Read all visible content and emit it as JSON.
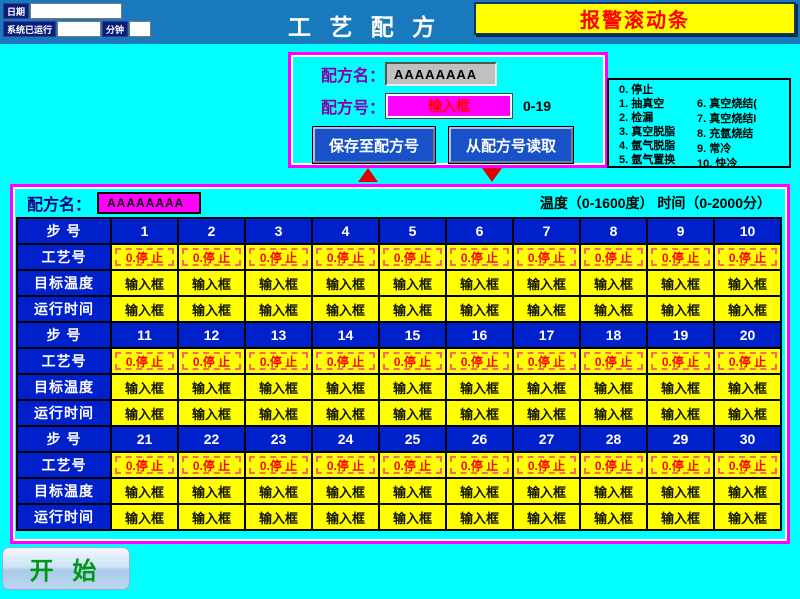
{
  "colors": {
    "background": "#00FFFF",
    "title_band": "#1879BD",
    "cell_blue": "#0020CC",
    "cell_yellow": "#FFFF00",
    "magenta": "#FF00FF",
    "alert_red": "#FF0000",
    "navy_box": "#0A1E78",
    "purple_label": "#8800A8",
    "button_blue": "#1952C8",
    "start_green": "#009718",
    "gray_input": "#C0C0C0"
  },
  "header": {
    "date_label": "日期",
    "date_value": "",
    "runtime_label": "系统已运行",
    "runtime_value": "",
    "minutes_label": "分钟",
    "minutes_value": "",
    "title": "工 艺 配 方",
    "alarm_bar": "报警滚动条"
  },
  "recipe_panel": {
    "name_label": "配方名：",
    "name_value": "AAAAAAAA",
    "number_label": "配方号：",
    "number_input": "输入框",
    "number_range": "0-19",
    "save_button": "保存至配方号",
    "load_button": "从配方号读取"
  },
  "process_legend": {
    "column1": [
      "0. 停止",
      "1. 抽真空",
      "2. 检漏",
      "3. 真空脱脂",
      "4. 氩气脱脂",
      "5. 氩气置换"
    ],
    "column2": [
      "6. 真空烧结(",
      "7. 真空烧结I",
      "8. 充氩烧结",
      "9. 常冷",
      "10. 快冷"
    ]
  },
  "steps_table": {
    "recipe_name_label": "配方名：",
    "recipe_name_value": "AAAAAAAA",
    "range_note": "温度（0-1600度） 时间（0-2000分）",
    "row_labels": {
      "step": "步 号",
      "process": "工艺号",
      "temperature": "目标温度",
      "runtime": "运行时间"
    },
    "process_cell_value": "0.停 止",
    "input_cell_value": "输入框",
    "blocks": [
      {
        "steps": [
          1,
          2,
          3,
          4,
          5,
          6,
          7,
          8,
          9,
          10
        ]
      },
      {
        "steps": [
          11,
          12,
          13,
          14,
          15,
          16,
          17,
          18,
          19,
          20
        ]
      },
      {
        "steps": [
          21,
          22,
          23,
          24,
          25,
          26,
          27,
          28,
          29,
          30
        ]
      }
    ]
  },
  "start_button": "开 始"
}
